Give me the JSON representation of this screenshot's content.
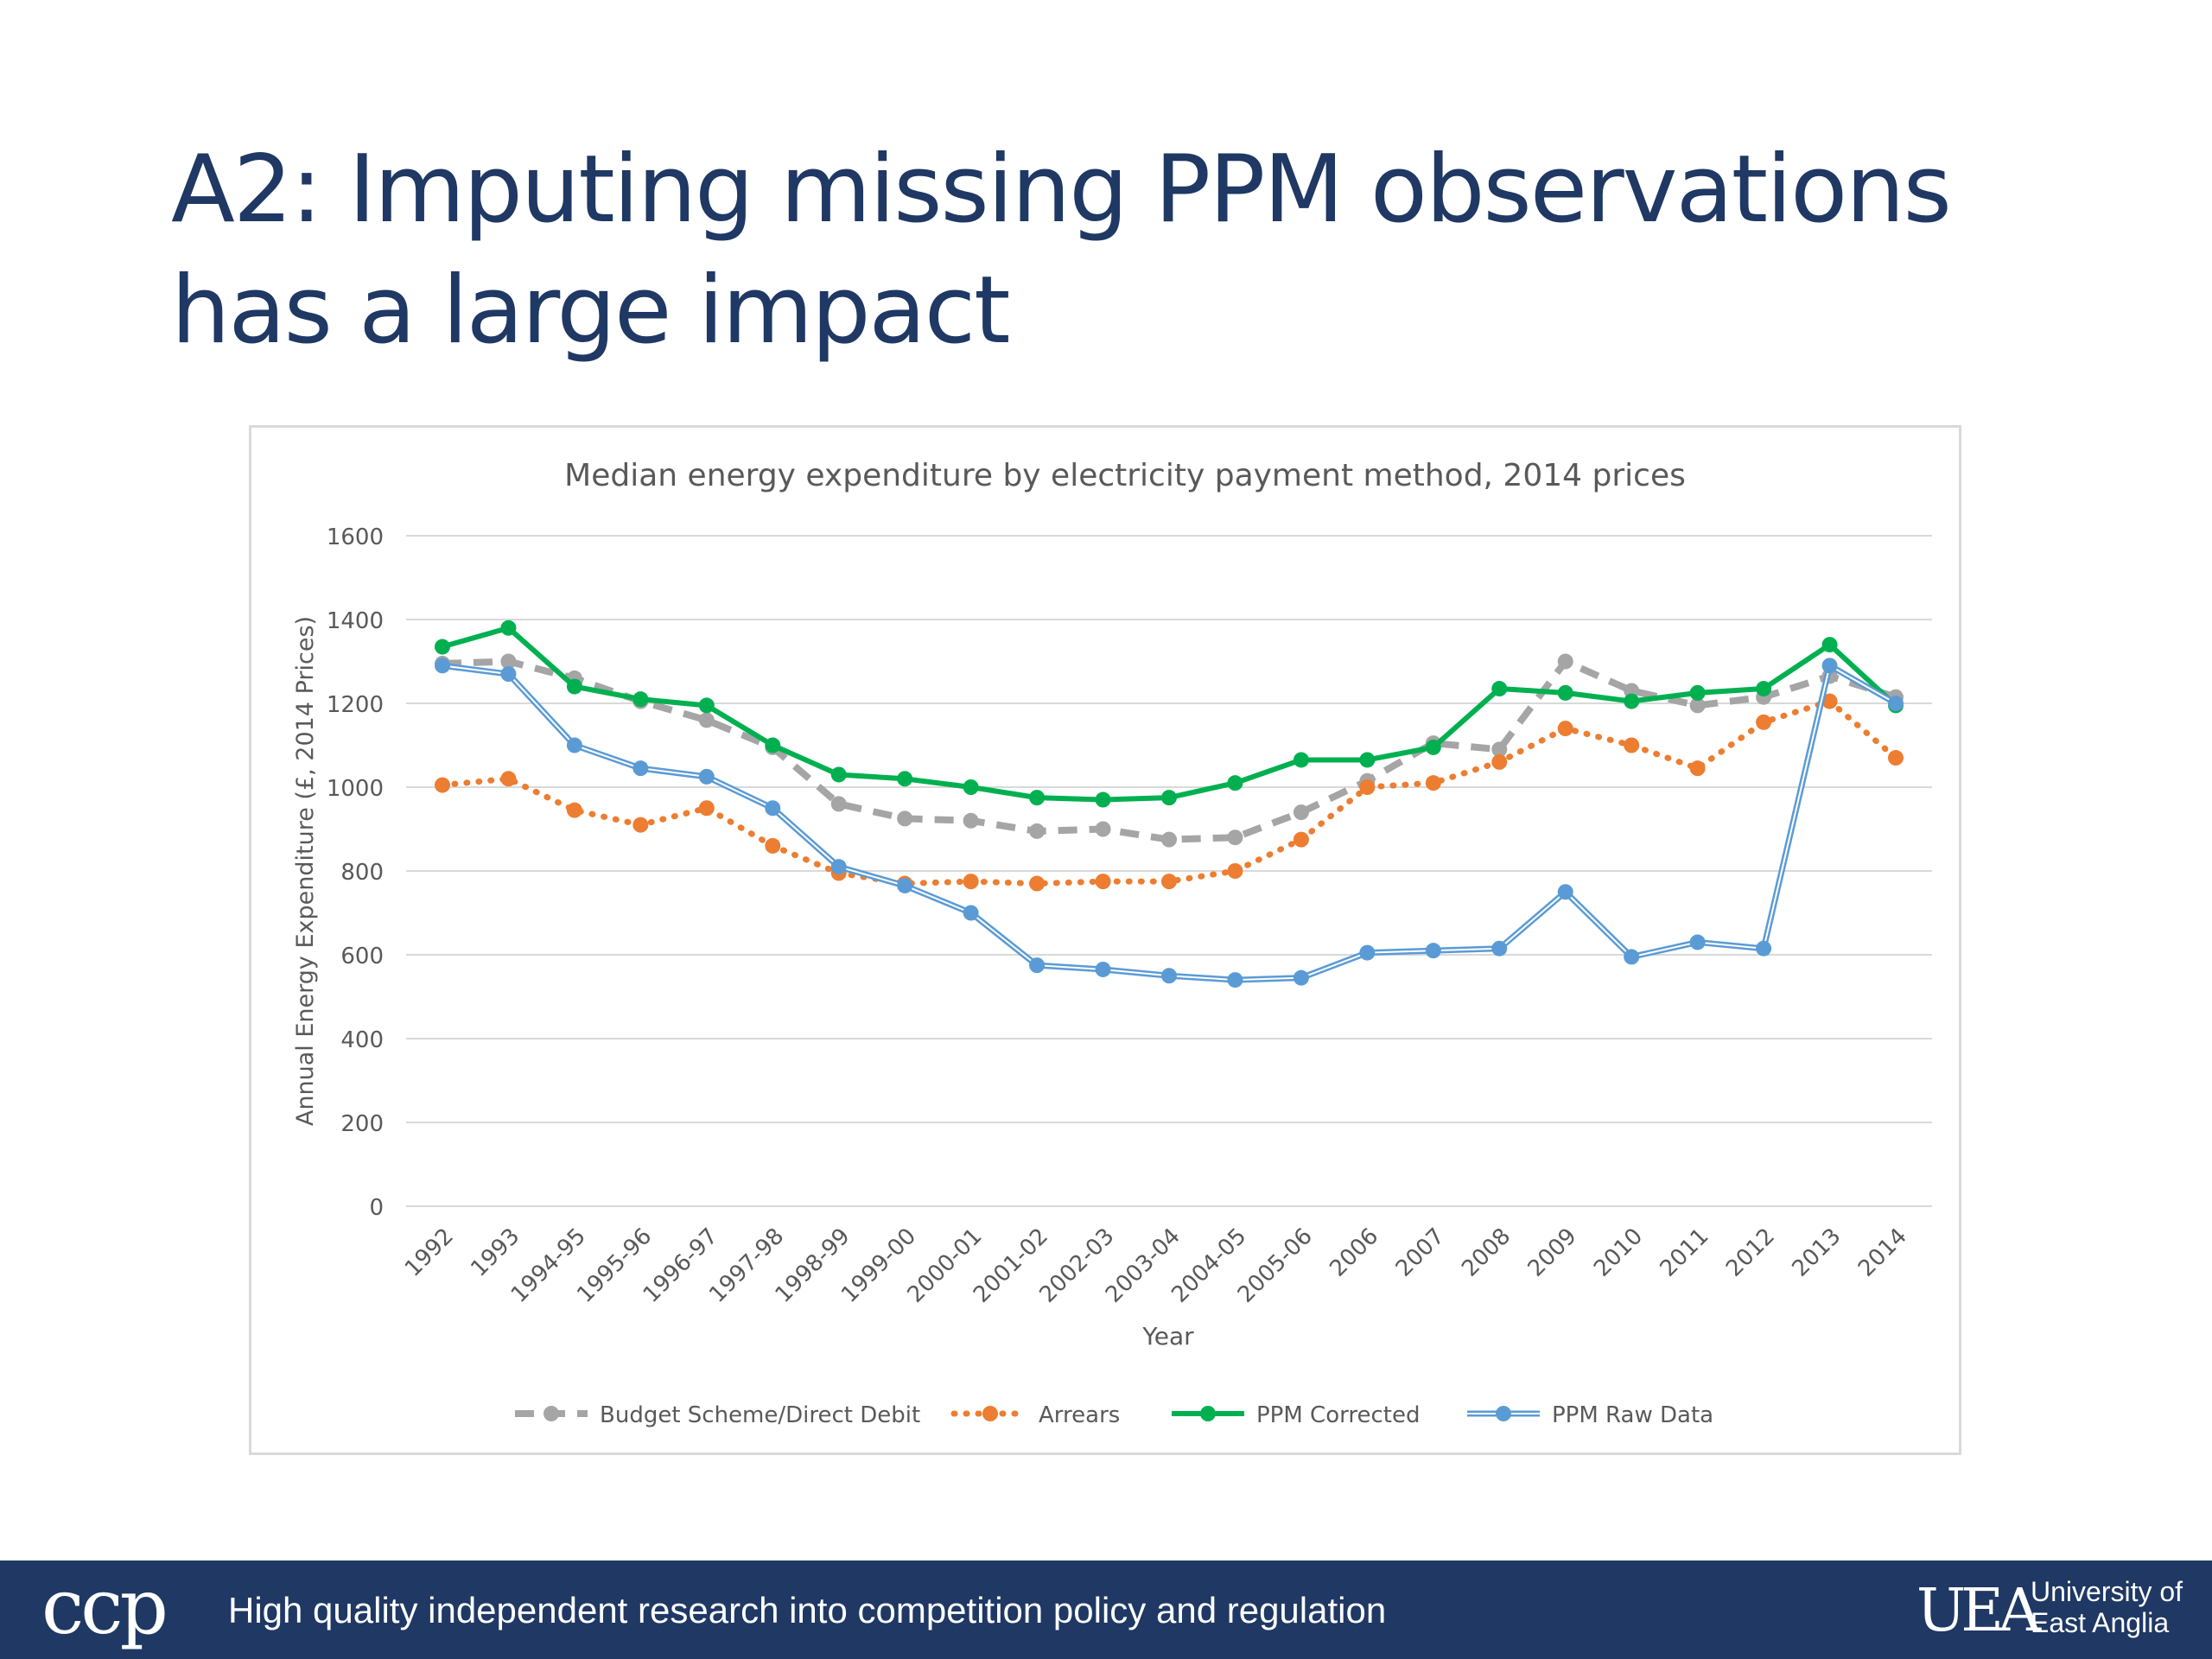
{
  "slide": {
    "title_line1": "A2: Imputing missing PPM observations",
    "title_line2": "has a large impact"
  },
  "footer": {
    "logo_text": "ccp",
    "tagline": "High quality independent research into competition policy and regulation",
    "university_mark": "UEA",
    "university_line1": "University of",
    "university_line2": "East Anglia",
    "background_color": "#1f3864"
  },
  "chart_data": {
    "type": "line",
    "title": "Median energy expenditure by electricity payment method, 2014 prices",
    "xlabel": "Year",
    "ylabel": "Annual Energy Expenditure (£, 2014 Prices)",
    "ylim": [
      0,
      1600
    ],
    "yticks": [
      0,
      200,
      400,
      600,
      800,
      1000,
      1200,
      1400,
      1600
    ],
    "grid": "horizontal",
    "legend_position": "bottom",
    "categories": [
      "1992",
      "1993",
      "1994-95",
      "1995-96",
      "1996-97",
      "1997-98",
      "1998-99",
      "1999-00",
      "2000-01",
      "2001-02",
      "2002-03",
      "2003-04",
      "2004-05",
      "2005-06",
      "2006",
      "2007",
      "2008",
      "2009",
      "2010",
      "2011",
      "2012",
      "2013",
      "2014"
    ],
    "series": [
      {
        "name": "Budget Scheme/Direct Debit",
        "color": "#a5a5a5",
        "style": "dashed",
        "values": [
          1295,
          1300,
          1260,
          1205,
          1160,
          1095,
          960,
          925,
          920,
          895,
          900,
          875,
          880,
          940,
          1015,
          1105,
          1090,
          1300,
          1230,
          1195,
          1215,
          1265,
          1215
        ]
      },
      {
        "name": "Arrears",
        "color": "#ed7d31",
        "style": "dotted",
        "values": [
          1005,
          1020,
          945,
          910,
          950,
          860,
          795,
          770,
          775,
          770,
          775,
          775,
          800,
          875,
          1000,
          1010,
          1060,
          1140,
          1100,
          1045,
          1155,
          1205,
          1070
        ]
      },
      {
        "name": "PPM Corrected",
        "color": "#00b050",
        "style": "solid",
        "values": [
          1335,
          1380,
          1240,
          1210,
          1195,
          1100,
          1030,
          1020,
          1000,
          975,
          970,
          975,
          1010,
          1065,
          1065,
          1095,
          1235,
          1225,
          1205,
          1225,
          1235,
          1340,
          1195
        ]
      },
      {
        "name": "PPM Raw Data",
        "color": "#5b9bd5",
        "style": "double",
        "values": [
          1290,
          1270,
          1100,
          1045,
          1025,
          950,
          810,
          765,
          700,
          575,
          565,
          550,
          540,
          545,
          605,
          610,
          615,
          750,
          595,
          630,
          615,
          1290,
          1200
        ]
      }
    ]
  }
}
